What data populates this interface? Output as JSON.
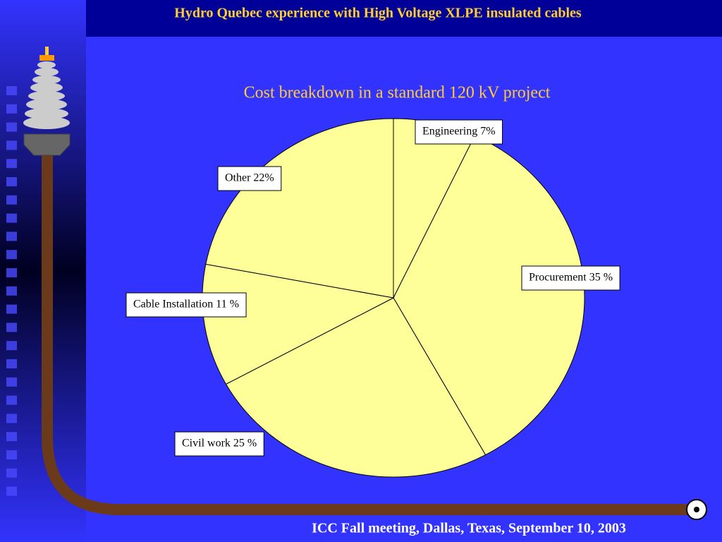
{
  "slide": {
    "title": "Hydro Quebec experience with High Voltage XLPE insulated cables",
    "footer": "ICC Fall meeting, Dallas, Texas,  September 10, 2003"
  },
  "chart_data": {
    "type": "pie",
    "title": "Cost breakdown in a standard 120 kV project",
    "values": [
      7,
      35,
      25,
      11,
      22
    ],
    "value_labels": [
      "Engineering 7%",
      "Procurement 35 %",
      "Civil work 25 %",
      "Cable Installation 11 %",
      "Other 22%"
    ],
    "color": "#ffff99"
  }
}
